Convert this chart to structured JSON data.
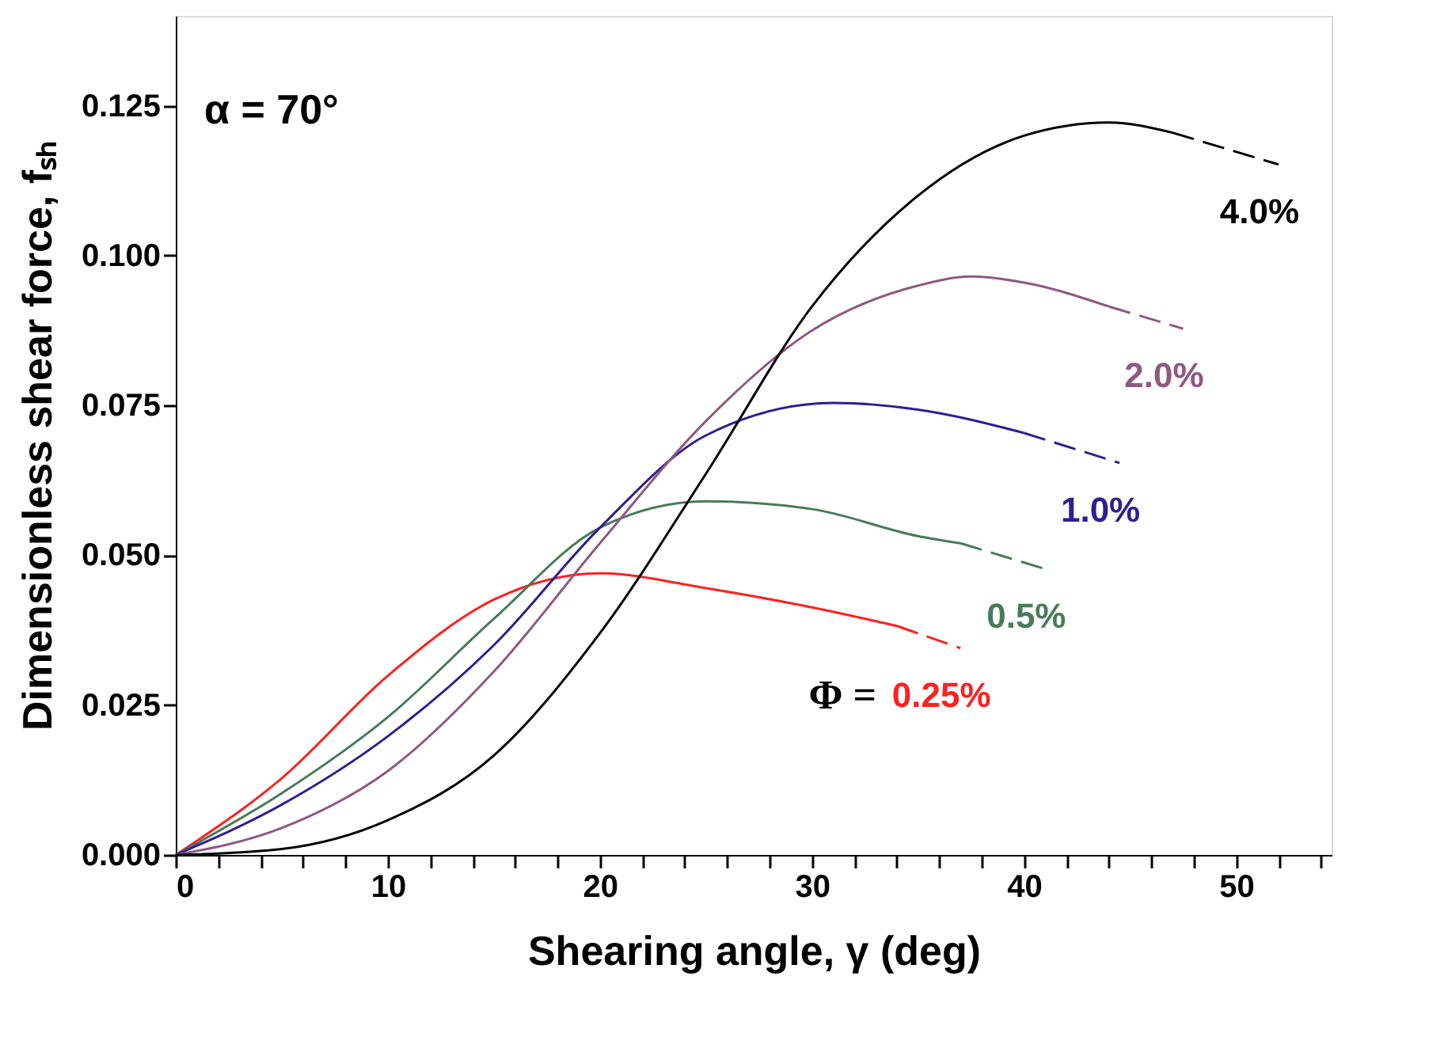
{
  "chart_data": {
    "type": "line",
    "xlabel": "Shearing angle, γ (deg)",
    "ylabel": "Dimensionless shear force, fₛₕ",
    "xlim": [
      0,
      54.5
    ],
    "ylim": [
      0,
      0.14
    ],
    "xticks": [
      0,
      {
        "value": 2,
        "label": null
      },
      {
        "value": 4,
        "label": null
      },
      {
        "value": 6,
        "label": null
      },
      {
        "value": 8,
        "label": null
      },
      10,
      {
        "value": 12,
        "label": null
      },
      {
        "value": 14,
        "label": null
      },
      {
        "value": 16,
        "label": null
      },
      {
        "value": 18,
        "label": null
      },
      20,
      {
        "value": 22,
        "label": null
      },
      {
        "value": 24,
        "label": null
      },
      {
        "value": 26,
        "label": null
      },
      {
        "value": 28,
        "label": null
      },
      30,
      {
        "value": 32,
        "label": null
      },
      {
        "value": 34,
        "label": null
      },
      {
        "value": 36,
        "label": null
      },
      {
        "value": 38,
        "label": null
      },
      40,
      {
        "value": 42,
        "label": null
      },
      {
        "value": 44,
        "label": null
      },
      {
        "value": 46,
        "label": null
      },
      {
        "value": 48,
        "label": null
      },
      50,
      {
        "value": 52,
        "label": null
      },
      {
        "value": 54,
        "label": null
      }
    ],
    "yticks": [
      {
        "value": 0,
        "label": "0.000"
      },
      {
        "value": 0.025,
        "label": "0.025"
      },
      {
        "value": 0.05,
        "label": "0.050"
      },
      {
        "value": 0.075,
        "label": "0.075"
      },
      {
        "value": 0.1,
        "label": "0.100"
      },
      {
        "value": 0.125,
        "label": "0.125"
      }
    ],
    "grid": false,
    "marker": "none",
    "annotations": [
      "α = 70°",
      "Φ ="
    ],
    "series": [
      {
        "color": "#ff2020",
        "line_style": "solid",
        "x": [
          0,
          5,
          10,
          15,
          20,
          25,
          30,
          34
        ],
        "values": [
          0,
          0.0128,
          0.0299,
          0.0426,
          0.047,
          0.0445,
          0.0413,
          0.0382
        ]
      },
      {
        "name": "0.25%",
        "color": "#ff2020",
        "line_style": "dashed",
        "x": [
          34,
          37
        ],
        "values": [
          0.0382,
          0.0345
        ]
      },
      {
        "color": "#4a7a5a",
        "line_style": "solid",
        "x": [
          0,
          5,
          10,
          15,
          20,
          25,
          30,
          35,
          37
        ],
        "values": [
          0,
          0.0103,
          0.023,
          0.0394,
          0.0546,
          0.059,
          0.0577,
          0.0532,
          0.052
        ]
      },
      {
        "name": "0.5%",
        "color": "#4a7a5a",
        "line_style": "dashed",
        "x": [
          37,
          41
        ],
        "values": [
          0.052,
          0.0477
        ]
      },
      {
        "color": "#2e1f8f",
        "line_style": "solid",
        "x": [
          0,
          5,
          10,
          15,
          20,
          25,
          31,
          35,
          40
        ],
        "values": [
          0,
          0.0084,
          0.0198,
          0.035,
          0.0546,
          0.07,
          0.0754,
          0.0743,
          0.0704
        ]
      },
      {
        "name": "1.0%",
        "color": "#2e1f8f",
        "line_style": "dashed",
        "x": [
          40,
          44.5
        ],
        "values": [
          0.0704,
          0.0654
        ]
      },
      {
        "color": "#8e5a7e",
        "line_style": "solid",
        "x": [
          0,
          5,
          10,
          15,
          20,
          25,
          30,
          35,
          37.5,
          40,
          44
        ],
        "values": [
          0,
          0.0045,
          0.014,
          0.0306,
          0.052,
          0.0724,
          0.0875,
          0.095,
          0.0965,
          0.0955,
          0.0915
        ]
      },
      {
        "name": "2.0%",
        "color": "#8e5a7e",
        "line_style": "dashed",
        "x": [
          44,
          47.5
        ],
        "values": [
          0.0915,
          0.0878
        ]
      },
      {
        "color": "#000000",
        "line_style": "solid",
        "x": [
          0,
          5,
          10,
          15,
          20,
          25,
          30,
          35,
          40,
          44,
          47
        ],
        "values": [
          0,
          0.001,
          0.0058,
          0.0166,
          0.037,
          0.0636,
          0.0915,
          0.11,
          0.12,
          0.1222,
          0.1205
        ]
      },
      {
        "name": "4.0%",
        "color": "#000000",
        "line_style": "dashed",
        "x": [
          47,
          52
        ],
        "values": [
          0.1205,
          0.1152
        ]
      }
    ]
  }
}
